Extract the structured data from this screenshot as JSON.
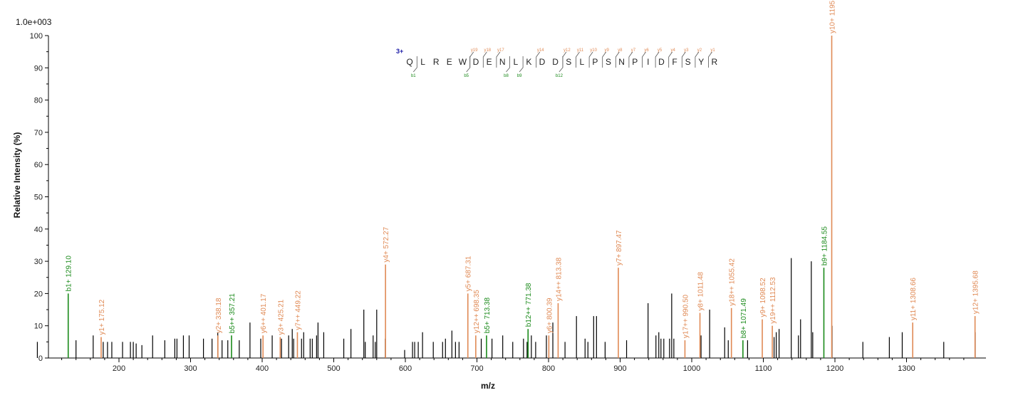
{
  "chart_data": {
    "type": "bar",
    "scale_label": "1.0e+003",
    "xlabel": "m/z",
    "ylabel": "Relative   Intensity (%)",
    "xlim": [
      68,
      1384
    ],
    "ylim": [
      0,
      100
    ],
    "x_ticks": [
      200,
      300,
      400,
      500,
      600,
      700,
      800,
      900,
      1000,
      1100,
      1200,
      1300
    ],
    "y_ticks": [
      0,
      10,
      20,
      30,
      40,
      50,
      60,
      70,
      80,
      90,
      100
    ],
    "colors": {
      "y_ion": "#e08a55",
      "b_ion": "#1a8a1a",
      "unassigned": "#000000",
      "charge": "#1a1aa6"
    },
    "annotated_peaks": [
      {
        "mz": 129.1,
        "intensity": 20,
        "label": "b1+ 129.10",
        "ion": "b"
      },
      {
        "mz": 175.12,
        "intensity": 6.5,
        "label": "y1+ 175.12",
        "ion": "y"
      },
      {
        "mz": 338.18,
        "intensity": 7,
        "label": "y2+ 338.18",
        "ion": "y"
      },
      {
        "mz": 357.21,
        "intensity": 7,
        "label": "b5++ 357.21",
        "ion": "b"
      },
      {
        "mz": 401.17,
        "intensity": 7,
        "label": "y6++ 401.17",
        "ion": "y"
      },
      {
        "mz": 425.21,
        "intensity": 6.5,
        "label": "y3+ 425.21",
        "ion": "y"
      },
      {
        "mz": 449.22,
        "intensity": 8,
        "label": "y7++ 449.22",
        "ion": "y"
      },
      {
        "mz": 572.27,
        "intensity": 29,
        "label": "y4+ 572.27",
        "ion": "y"
      },
      {
        "mz": 687.31,
        "intensity": 20,
        "label": "y5+ 687.31",
        "ion": "y"
      },
      {
        "mz": 698.35,
        "intensity": 7,
        "label": "y12++ 698.35",
        "ion": "y"
      },
      {
        "mz": 713.38,
        "intensity": 7,
        "label": "b5+ 713.38",
        "ion": "b"
      },
      {
        "mz": 771.38,
        "intensity": 9,
        "label": "b12++ 771.38",
        "ion": "b"
      },
      {
        "mz": 800.39,
        "intensity": 7,
        "label": "y6+ 800.39",
        "ion": "y"
      },
      {
        "mz": 813.38,
        "intensity": 17,
        "label": "y14++ 813.38",
        "ion": "y"
      },
      {
        "mz": 897.47,
        "intensity": 28,
        "label": "y7+ 897.47",
        "ion": "y"
      },
      {
        "mz": 990.5,
        "intensity": 5.5,
        "label": "y17++ 990.50",
        "ion": "y"
      },
      {
        "mz": 1011.48,
        "intensity": 14,
        "label": "y8+ 1011.48",
        "ion": "y"
      },
      {
        "mz": 1055.42,
        "intensity": 15.5,
        "label": "y18++ 1055.42",
        "ion": "y"
      },
      {
        "mz": 1071.49,
        "intensity": 5.5,
        "label": "b8+ 1071.49",
        "ion": "b"
      },
      {
        "mz": 1098.52,
        "intensity": 12,
        "label": "y9+ 1098.52",
        "ion": "y"
      },
      {
        "mz": 1112.53,
        "intensity": 10,
        "label": "y19++ 1112.53",
        "ion": "y"
      },
      {
        "mz": 1184.55,
        "intensity": 28,
        "label": "b9+ 1184.55",
        "ion": "b"
      },
      {
        "mz": 1195.55,
        "intensity": 100,
        "label": "y10+ 1195.55",
        "ion": "y"
      },
      {
        "mz": 1308.66,
        "intensity": 11,
        "label": "y11+ 1308.66",
        "ion": "y"
      },
      {
        "mz": 1395.68,
        "intensity": 13,
        "label": "y12+ 1395.68",
        "ion": "y"
      }
    ],
    "unassigned_peaks": [
      [
        86,
        5
      ],
      [
        140,
        5.5
      ],
      [
        164,
        7
      ],
      [
        178,
        5
      ],
      [
        184,
        5
      ],
      [
        190,
        5
      ],
      [
        205,
        5
      ],
      [
        216,
        5
      ],
      [
        220,
        5
      ],
      [
        224,
        4.5
      ],
      [
        232,
        4
      ],
      [
        247,
        7
      ],
      [
        264,
        5.5
      ],
      [
        278,
        6
      ],
      [
        281,
        6
      ],
      [
        290,
        7
      ],
      [
        298,
        7
      ],
      [
        318,
        6
      ],
      [
        330,
        6
      ],
      [
        338,
        8
      ],
      [
        344,
        5.5
      ],
      [
        352,
        5.5
      ],
      [
        368,
        5.5
      ],
      [
        383,
        11
      ],
      [
        398,
        6
      ],
      [
        414,
        7
      ],
      [
        427,
        6
      ],
      [
        437,
        7
      ],
      [
        442,
        9
      ],
      [
        444,
        6
      ],
      [
        455,
        6
      ],
      [
        458,
        8
      ],
      [
        467,
        6
      ],
      [
        470,
        6
      ],
      [
        476,
        7
      ],
      [
        478,
        11
      ],
      [
        486,
        8
      ],
      [
        514,
        6
      ],
      [
        524,
        9
      ],
      [
        542,
        15
      ],
      [
        544,
        5
      ],
      [
        555,
        7
      ],
      [
        558,
        5
      ],
      [
        560,
        15
      ],
      [
        572,
        6
      ],
      [
        599,
        2.5
      ],
      [
        610,
        5
      ],
      [
        613,
        5
      ],
      [
        618,
        5
      ],
      [
        624,
        8
      ],
      [
        639,
        5
      ],
      [
        652,
        5
      ],
      [
        656,
        6
      ],
      [
        665,
        8.5
      ],
      [
        670,
        5
      ],
      [
        675,
        5
      ],
      [
        706,
        6
      ],
      [
        721,
        6
      ],
      [
        736,
        7
      ],
      [
        750,
        5
      ],
      [
        765,
        6
      ],
      [
        770,
        5
      ],
      [
        776,
        7
      ],
      [
        782,
        5
      ],
      [
        797,
        7
      ],
      [
        806,
        11
      ],
      [
        823,
        5
      ],
      [
        839,
        13
      ],
      [
        851,
        6
      ],
      [
        855,
        5
      ],
      [
        863,
        13
      ],
      [
        867,
        13
      ],
      [
        879,
        5
      ],
      [
        909,
        5.5
      ],
      [
        939,
        17
      ],
      [
        950,
        7
      ],
      [
        954,
        8
      ],
      [
        957,
        6
      ],
      [
        961,
        6
      ],
      [
        969,
        6
      ],
      [
        972,
        20
      ],
      [
        975,
        6
      ],
      [
        1013,
        7
      ],
      [
        1025,
        15
      ],
      [
        1046,
        9.5
      ],
      [
        1051,
        5.5
      ],
      [
        1078,
        5.5
      ],
      [
        1115,
        6.5
      ],
      [
        1118,
        8
      ],
      [
        1122,
        9
      ],
      [
        1139,
        31
      ],
      [
        1149,
        7
      ],
      [
        1152,
        12
      ],
      [
        1167,
        30
      ],
      [
        1169,
        8
      ],
      [
        1196,
        10
      ],
      [
        1239,
        5
      ],
      [
        1276,
        6.5
      ],
      [
        1294,
        8
      ],
      [
        1352,
        5
      ],
      [
        1396,
        8
      ]
    ],
    "sequence": {
      "charge": "3+",
      "residues": [
        "Q",
        "L",
        "R",
        "E",
        "W",
        "D",
        "E",
        "N",
        "L",
        "K",
        "D",
        "D",
        "S",
        "L",
        "P",
        "S",
        "N",
        "P",
        "I",
        "D",
        "F",
        "S",
        "Y",
        "R"
      ],
      "y_fragments": [
        {
          "label": "y19",
          "after": 5
        },
        {
          "label": "y18",
          "after": 6
        },
        {
          "label": "y17",
          "after": 7
        },
        {
          "label": "y14",
          "after": 10
        },
        {
          "label": "y12",
          "after": 12
        },
        {
          "label": "y11",
          "after": 13
        },
        {
          "label": "y10",
          "after": 14
        },
        {
          "label": "y9",
          "after": 15
        },
        {
          "label": "y8",
          "after": 16
        },
        {
          "label": "y7",
          "after": 17
        },
        {
          "label": "y6",
          "after": 18
        },
        {
          "label": "y5",
          "after": 19
        },
        {
          "label": "y4",
          "after": 20
        },
        {
          "label": "y3",
          "after": 21
        },
        {
          "label": "y2",
          "after": 22
        },
        {
          "label": "y1",
          "after": 23
        }
      ],
      "b_fragments": [
        {
          "label": "b1",
          "after": 1
        },
        {
          "label": "b5",
          "after": 5
        },
        {
          "label": "b8",
          "after": 8
        },
        {
          "label": "b9",
          "after": 9
        },
        {
          "label": "b12",
          "after": 12
        }
      ]
    }
  }
}
